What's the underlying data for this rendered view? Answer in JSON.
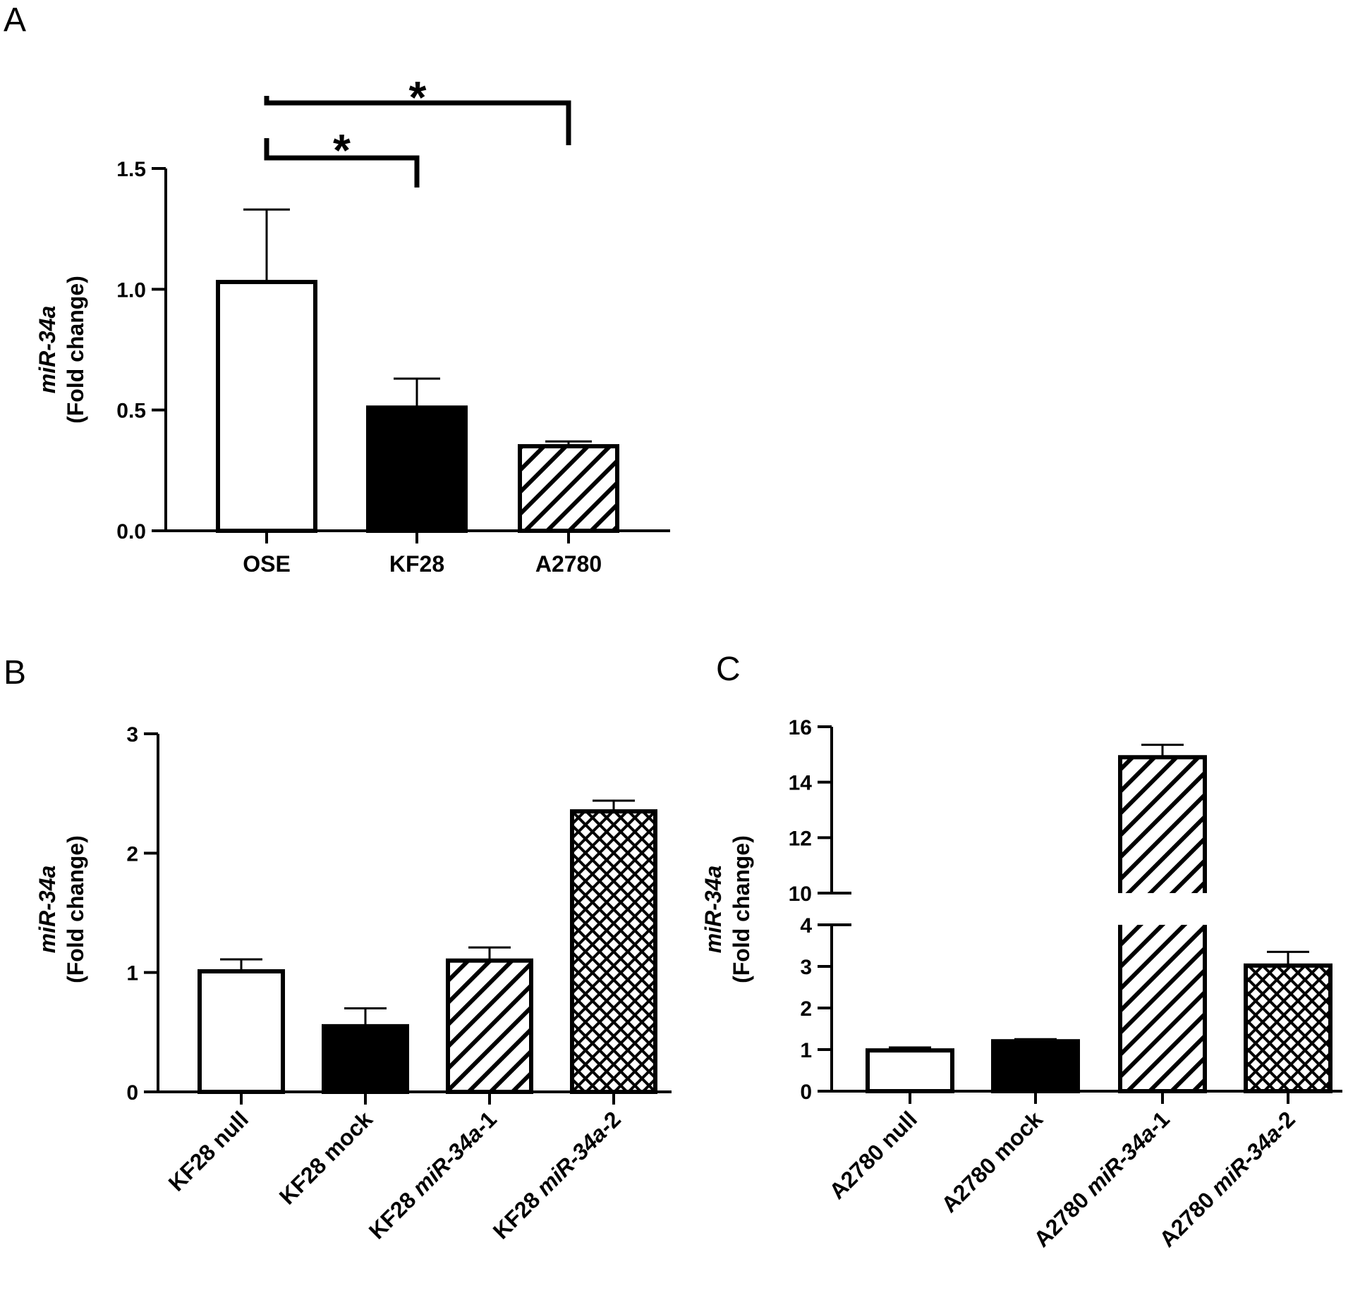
{
  "chart_data": [
    {
      "panel": "A",
      "type": "bar",
      "categories": [
        "OSE",
        "KF28",
        "A2780"
      ],
      "values": [
        1.03,
        0.51,
        0.35
      ],
      "errors": [
        0.3,
        0.12,
        0.02
      ],
      "fills": [
        "white",
        "solid",
        "hatch"
      ],
      "ylabel_italic": "miR-34a",
      "ylabel": "(Fold change)",
      "ylim": [
        0,
        1.5
      ],
      "yticks": [
        "0.0",
        "0.5",
        "1.0",
        "1.5"
      ],
      "significance": [
        {
          "from": "OSE",
          "to": "KF28",
          "label": "*"
        },
        {
          "from": "OSE",
          "to": "A2780",
          "label": "*"
        }
      ],
      "grid": false
    },
    {
      "panel": "B",
      "type": "bar",
      "categories": [
        {
          "prefix": "KF28",
          "italic": "",
          "suffix": "null"
        },
        {
          "prefix": "KF28",
          "italic": "",
          "suffix": "mock"
        },
        {
          "prefix": "KF28",
          "italic": "miR-34a",
          "suffix": "-1"
        },
        {
          "prefix": "KF28",
          "italic": "miR-34a",
          "suffix": "-2"
        }
      ],
      "values": [
        1.01,
        0.55,
        1.1,
        2.35
      ],
      "errors": [
        0.1,
        0.15,
        0.11,
        0.09
      ],
      "fills": [
        "white",
        "solid",
        "hatch",
        "crosshatch"
      ],
      "ylabel_italic": "miR-34a",
      "ylabel": "(Fold change)",
      "ylim": [
        0,
        3
      ],
      "yticks": [
        "0",
        "1",
        "2",
        "3"
      ],
      "grid": false
    },
    {
      "panel": "C",
      "type": "bar",
      "categories": [
        {
          "prefix": "A2780",
          "italic": "",
          "suffix": "null"
        },
        {
          "prefix": "A2780",
          "italic": "",
          "suffix": "mock"
        },
        {
          "prefix": "A2780",
          "italic": "miR-34a",
          "suffix": "-1"
        },
        {
          "prefix": "A2780",
          "italic": "miR-34a",
          "suffix": "-2"
        }
      ],
      "values": [
        0.98,
        1.2,
        14.9,
        3.02
      ],
      "errors": [
        0.07,
        0.05,
        0.45,
        0.33
      ],
      "fills": [
        "white",
        "solid",
        "hatch",
        "crosshatch"
      ],
      "ylabel_italic": "miR-34a",
      "ylabel": "(Fold change)",
      "axis_break": {
        "lower": [
          0,
          4
        ],
        "upper": [
          10,
          16
        ]
      },
      "yticks_lower": [
        "0",
        "1",
        "2",
        "3",
        "4"
      ],
      "yticks_upper": [
        "10",
        "12",
        "14",
        "16"
      ],
      "grid": false
    }
  ]
}
